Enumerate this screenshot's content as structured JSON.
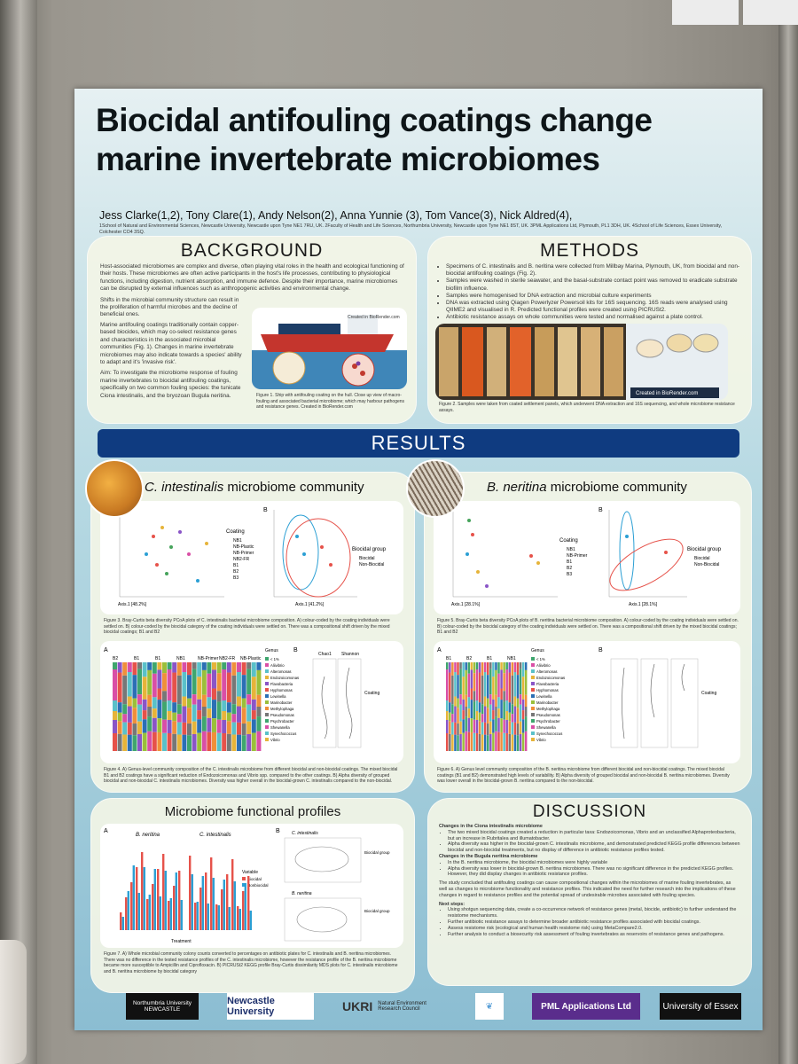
{
  "poster": {
    "title_line1": "Biocidal antifouling coatings change",
    "title_line2": "marine invertebrate microbiomes",
    "authors": "Jess Clarke(1,2), Tony Clare(1), Andy Nelson(2), Anna Yunnie (3), Tom Vance(3), Nick Aldred(4),",
    "affiliations": "1School of Natural and Environmental Sciences, Newcastle University, Newcastle upon Tyne NE1 7RU, UK. 2Faculty of Health and Life Sciences, Northumbria University, Newcastle upon Tyne NE1 8ST, UK. 3PML Applications Ltd, Plymouth, PL1 3DH, UK. 4School of Life Sciences, Essex University, Colchester CO4 3SQ."
  },
  "background": {
    "heading": "BACKGROUND",
    "p1": "Host-associated microbiomes are complex and diverse, often playing vital roles in the health and ecological functioning of their hosts. These microbiomes are often active participants in the host's life processes, contributing to physiological functions, including digestion, nutrient absorption, and immune defence. Despite their importance, marine microbiomes can be disrupted by external influences such as anthropogenic activities and environmental change.",
    "p2": "Shifts in the microbial community structure can result in the proliferation of harmful microbes and the decline of beneficial ones.",
    "p3": "Marine antifouling coatings traditionally contain copper-based biocides, which may co-select resistance genes and characteristics in the associated microbial communities (Fig. 1). Changes in marine invertebrate microbiomes may also indicate towards a species' ability to adapt and it's 'invasive risk'.",
    "aim": "Aim: To investigate the microbiome response of fouling marine invertebrates to biocidal antifouling coatings, specifically on two common fouling species: the tunicate Ciona intestinalis, and the bryozoan Bugula neritina.",
    "fig1_caption": "Figure 1. Ship with antifouling coating on the hull. Close up view of macro-fouling and associated bacterial microbiome; which may harbour pathogens and resistance genes. Created in BioRender.com",
    "biorender": "Created in BioRender.com"
  },
  "methods": {
    "heading": "METHODS",
    "bullets": [
      "Specimens of C. intestinalis and B. neritina were collected from Millbay Marina, Plymouth, UK, from biocidal and non-biocidal antifouling coatings (Fig. 2).",
      "Samples were washed in sterile seawater, and the basal-substrate contact point was removed to eradicate substrate biofilm influence.",
      "Samples were homogenised for DNA extraction and microbial culture experiments",
      "DNA was extracted using Qiagen Powerlyzer Powersoil kits for 16S sequencing. 16S reads were analysed using QIIME2 and visualised in R. Predicted functional profiles were created using PICRUSt2.",
      "Antibiotic resistance assays on whole communities were tested and normalised against a plate control."
    ],
    "biorender": "Created in BioRender.com",
    "fig2_caption": "Figure 2. Samples were taken from coated settlement panels, which underwent DNA extraction and 16S sequencing, and whole microbiome resistance assays."
  },
  "results": {
    "heading": "RESULTS",
    "ciona_title_species": "C. intestinalis",
    "ciona_title_rest": " microbiome community",
    "bugula_title_species": "B. neritina",
    "bugula_title_rest": " microbiome community",
    "fig3_caption": "Figure 3. Bray-Curtis beta diversity PCoA plots of C. intestinalis bacterial microbiome composition. A) colour-coded by the coating individuals were settled on. B) colour-coded by the biocidal category of the coating individuals were settled on. There was a compositional shift driven by the mixed biocidal coatings; B1 and B2",
    "fig5_caption": "Figure 5. Bray-Curtis beta diversity PCoA plots of B. neritina bacterial microbiome composition. A) colour-coded by the coating individuals were settled on. B) colour-coded by the biocidal category of the coating individuals were settled on. There was a compositional shift driven by the mixed biocidal coatings; B1 and B2",
    "fig4_caption": "Figure 4. A) Genus-level community composition of the C. intestinalis microbiome from different biocidal and non-biocidal coatings. The mixed biocidal B1 and B2 coatings have a significant reduction of Endozoicomonas and Vibrio spp. compared to the other coatings. B) Alpha diversity of grouped biocidal and non-biocidal C. intestinalis microbiomes. Diversity was higher overall in the biocidal-grown C. intestinalis compared to the non-biocidal.",
    "fig6_caption": "Figure 6. A) Genus level community composition of the B. neritina microbiome from different biocidal and non-biocidal coatings. The mixed biocidal coatings (B1 and B2) demonstrated high levels of variability. B) Alpha diversity of grouped biocidal and non-biocidal B. neritina microbiomes. Diversity was lower overall in the biocidal-grown B. neritina compared to the non-biocidal.",
    "axis1_ciona": "Axis.1 [48.2%]",
    "axis2_ciona": "Axis.2 [12.9%]",
    "axis1_ciona_b": "Axis.1 [41.2%]",
    "axis1_bugula": "Axis.1 [28.1%]",
    "axis2_bugula": "Axis.2 [14.8%]",
    "legend_coating": "Coating",
    "legend_biocidal_group": "Biocidal group",
    "legend_items_ciona": [
      "NB1",
      "NB-Plastic",
      "NB-Primer",
      "NB2-FR",
      "B1",
      "B2",
      "B3"
    ],
    "legend_items_bugula": [
      "NB1",
      "NB-Primer",
      "B1",
      "B2",
      "B3"
    ],
    "group_items": [
      "Biocidal",
      "Non-Biocidal"
    ],
    "bar_groups_ciona": [
      "B2",
      "B1",
      "B1",
      "NB1",
      "NB-Primer",
      "NB2-FR",
      "NB-Plastic"
    ],
    "bar_groups_bugula": [
      "B1",
      "B2",
      "B1",
      "NB1"
    ],
    "genus_heading": "Genus",
    "genus_items": [
      "< 1%",
      "Aliivibrio",
      "Alteromonas",
      "Endozoicomonas",
      "Flavobacteria",
      "Hyphomonas",
      "Lewinella",
      "Marinobacter",
      "Methylophaga",
      "Pseudomonas",
      "Psychrobacter",
      "Shewanella",
      "Synechococcus",
      "Vibrio"
    ],
    "chao1": "Chao1",
    "shannon": "Shannon",
    "label_a": "A",
    "label_b": "B"
  },
  "functional": {
    "heading": "Microbiome functional profiles",
    "b_neritina": "B. neritina",
    "c_intestinalis": "C. intestinalis",
    "variable_label": "Variable",
    "variable_items": [
      "Biocidal",
      "Nonbiocidal"
    ],
    "x_label": "Treatment",
    "fig7_caption": "Figure 7. A) Whole microbial community colony counts converted to percentages on antibiotic plates for C. intestinalis and B. neritina microbiomes. There was no difference in the tested resistance profiles of the C. intestinalis microbiome, however the resistance profile of the B. neritina microbiome became more susceptible to Ampicillin and Ciprofloxacin. B) PICRUSt2 KEGG profile Bray-Curtis dissimilarity MDS plots for C. intestinalis microbiome and B. neritina microbiome by biocidal category"
  },
  "discussion": {
    "heading": "DISCUSSION",
    "ciona_head": "Changes in the Ciona intestinalis microbiome",
    "ciona_bullets": [
      "The two mixed biocidal coatings created a reduction in particular taxa: Endozoicomonas, Vibrio and an unclassified Alphaproteobacteria, but an increase in Rubritalea and illumatobacter.",
      "Alpha diversity was higher in the biocidal-grown C. intestinalis microbiome, and demonstrated predicted KEGG profile differences between biocidal and non-biocidal treatments, but no display of difference in antibiotic resistance profiles tested."
    ],
    "bugula_head": "Changes in the Bugula neritina microbiome",
    "bugula_bullets": [
      "In the B. neritina microbiome, the biocidal microbiomes were highly variable",
      "Alpha diversity was lower in biocidal-grown B. neritina microbiomes. There was no significant difference in the predicted KEGG profiles. However, they did display changes in antibiotic resistance profiles."
    ],
    "summary": "The study concluded that antifouling coatings can cause compositional changes within the microbiomes of marine fouling invertebrates, as well as changes to microbiome functionality and resistance profiles. This indicated the need for further research into the implications of these changes in regard to resistance profiles and the potential spread of undesirable microbes associated with fouling species.",
    "next_head": "Next steps:",
    "next_bullets": [
      "Using shotgun sequencing data, create a co-occurrence network of resistance genes (metal, biocide, antibiotic) to further understand the resistome mechanisms.",
      "Further antibiotic resistance assays to determine broader antibiotic resistance profiles associated with biocidal coatings.",
      "Assess resistome risk (ecological and human health resistome risk) using MetaCompare2.0.",
      "Further analysis to conduct a biosecurity risk assessment of fouling invertebrates as reservoirs of resistance genes and pathogens."
    ]
  },
  "logos": {
    "northumbria": "Northumbria University NEWCASTLE",
    "newcastle": "Newcastle University",
    "nerc": "Natural Environment Research Council",
    "ukri": "UKRI",
    "pml": "PML Applications Ltd",
    "essex": "University of Essex"
  },
  "colors": {
    "results_bar": "#0f3b80",
    "panel": "#f3f5e6",
    "biocidal": "#e6524a",
    "non_biocidal": "#2b9fd4"
  }
}
